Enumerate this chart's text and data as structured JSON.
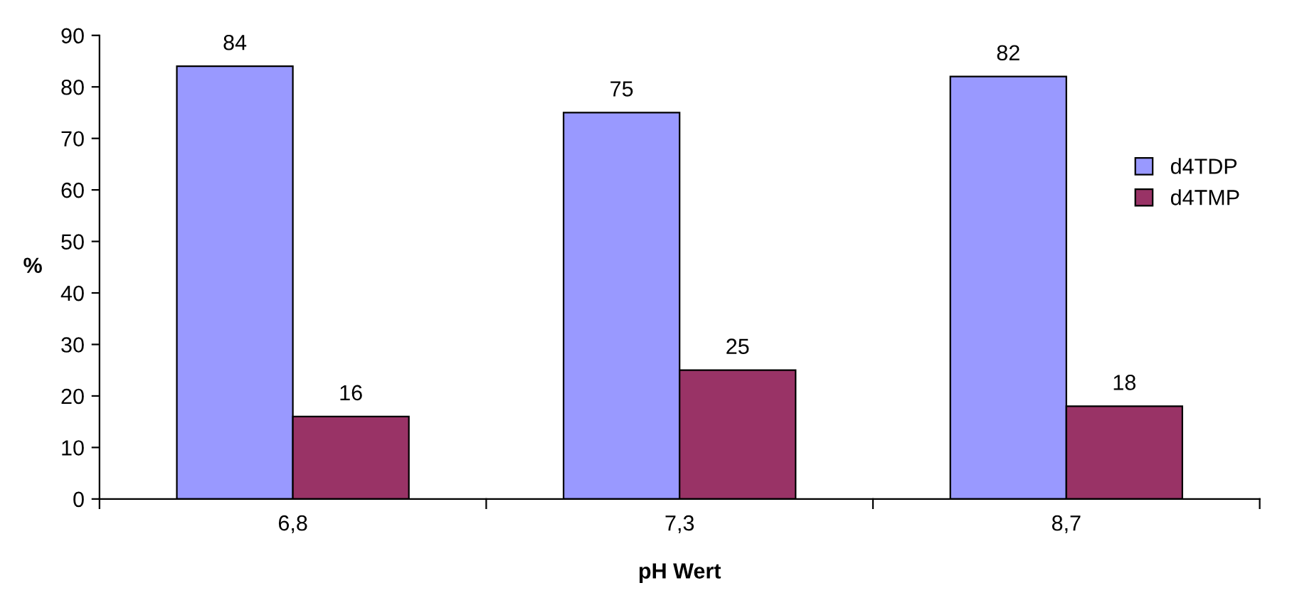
{
  "chart_data": {
    "type": "bar",
    "xlabel": "pH Wert",
    "ylabel": "%",
    "categories": [
      "6,8",
      "7,3",
      "8,7"
    ],
    "series": [
      {
        "name": "d4TDP",
        "color": "#9999ff",
        "values": [
          84,
          75,
          82
        ]
      },
      {
        "name": "d4TMP",
        "color": "#993366",
        "values": [
          16,
          25,
          18
        ]
      }
    ],
    "ylim": [
      0,
      90
    ],
    "yticks": [
      0,
      10,
      20,
      30,
      40,
      50,
      60,
      70,
      80,
      90
    ],
    "data_labels": true,
    "grid": false,
    "legend": "right"
  }
}
